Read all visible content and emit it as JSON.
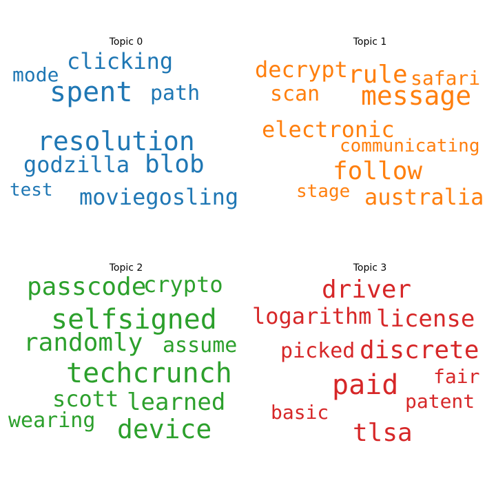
{
  "chart_data": {
    "type": "wordcloud",
    "panels": [
      {
        "title": "Topic 0",
        "color": "#1f77b4",
        "words": [
          "clicking",
          "mode",
          "spent",
          "path",
          "resolution",
          "godzilla",
          "blob",
          "test",
          "moviegosling"
        ]
      },
      {
        "title": "Topic 1",
        "color": "#ff7f0e",
        "words": [
          "decrypt",
          "rule",
          "safari",
          "scan",
          "message",
          "electronic",
          "communicating",
          "follow",
          "stage",
          "australia"
        ]
      },
      {
        "title": "Topic 2",
        "color": "#2ca02c",
        "words": [
          "passcode",
          "crypto",
          "selfsigned",
          "randomly",
          "assume",
          "techcrunch",
          "scott",
          "learned",
          "wearing",
          "device"
        ]
      },
      {
        "title": "Topic 3",
        "color": "#d62728",
        "words": [
          "driver",
          "logarithm",
          "license",
          "picked",
          "discrete",
          "paid",
          "fair",
          "patent",
          "basic",
          "tlsa"
        ]
      }
    ]
  }
}
